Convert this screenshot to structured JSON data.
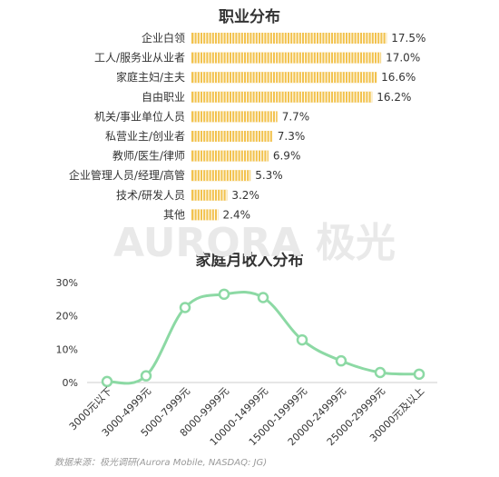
{
  "colors": {
    "bar": "#f2c24e",
    "line": "#8cd9a4",
    "text": "#333333",
    "axis": "#cccccc",
    "watermark": "#e9e9e9"
  },
  "watermark": "AURORA 极光",
  "source": "数据来源：极光调研(Aurora Mobile, NASDAQ: JG)",
  "chart_data": [
    {
      "type": "bar",
      "orientation": "horizontal",
      "title": "职业分布",
      "categories": [
        "企业白领",
        "工人/服务业从业者",
        "家庭主妇/主夫",
        "自由职业",
        "机关/事业单位人员",
        "私营业主/创业者",
        "教师/医生/律师",
        "企业管理人员/经理/高管",
        "技术/研发人员",
        "其他"
      ],
      "values": [
        17.5,
        17.0,
        16.6,
        16.2,
        7.7,
        7.3,
        6.9,
        5.3,
        3.2,
        2.4
      ],
      "value_labels": [
        "17.5%",
        "17.0%",
        "16.6%",
        "16.2%",
        "7.7%",
        "7.3%",
        "6.9%",
        "5.3%",
        "3.2%",
        "2.4%"
      ],
      "unit": "%",
      "grid": false
    },
    {
      "type": "line",
      "title": "家庭月收入分布",
      "categories": [
        "3000元以下",
        "3000-4999元",
        "5000-7999元",
        "8000-9999元",
        "10000-14999元",
        "15000-19999元",
        "20000-24999元",
        "25000-29999元",
        "30000元及以上"
      ],
      "values": [
        0.3,
        2.0,
        22.5,
        26.5,
        25.5,
        12.8,
        6.5,
        3.0,
        2.5
      ],
      "ylim": [
        0,
        30
      ],
      "yticks": [
        0,
        10,
        20,
        30
      ],
      "ytick_labels": [
        "0%",
        "10%",
        "20%",
        "30%"
      ],
      "smooth": true,
      "markers": true,
      "grid": false
    }
  ]
}
